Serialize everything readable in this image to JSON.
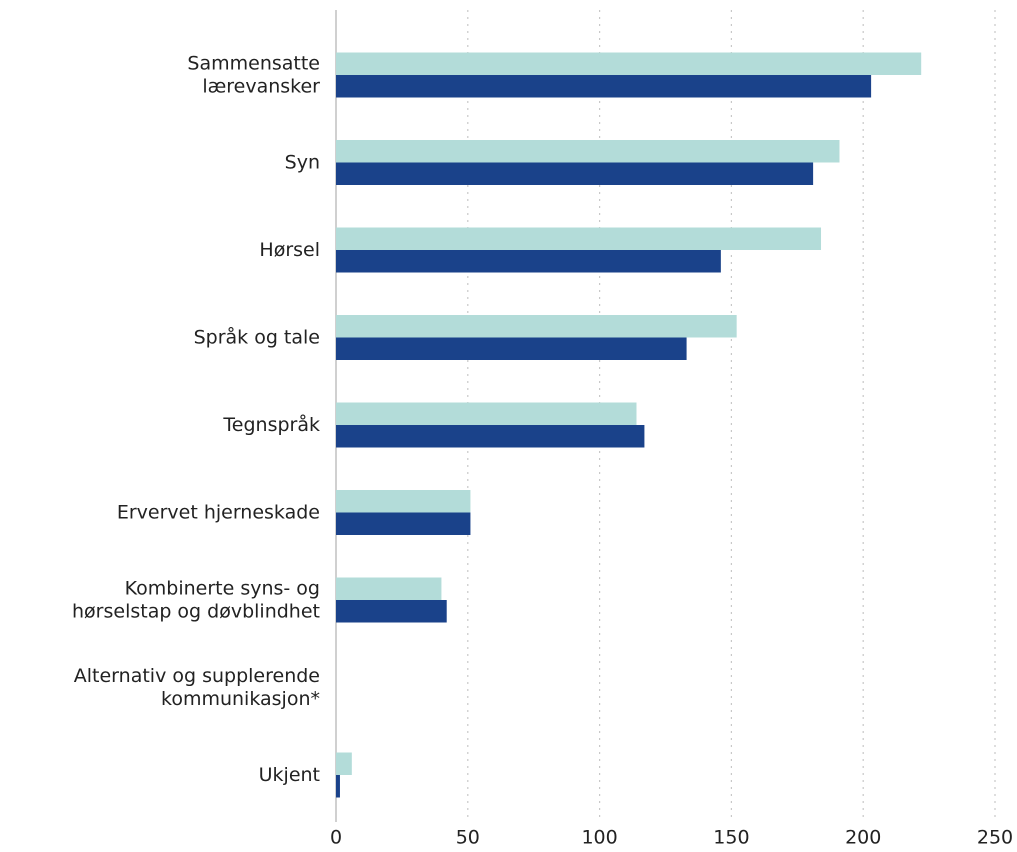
{
  "chart_data": {
    "type": "hbar",
    "categories": [
      "Sammensatte\nlærevansker",
      "Syn",
      "Hørsel",
      "Språk og tale",
      "Tegnspråk",
      "Ervervet hjerneskade",
      "Kombinerte syns- og\nhørselstap og døvblindhet",
      "Alternativ og supplerende\nkommunikasjon*",
      "Ukjent"
    ],
    "series": [
      {
        "color": "#b3dcd9",
        "values": [
          222,
          191,
          184,
          152,
          114,
          51,
          40,
          null,
          6
        ]
      },
      {
        "color": "#1a428a",
        "values": [
          203,
          181,
          146,
          133,
          117,
          51,
          42,
          null,
          1.5
        ]
      }
    ],
    "xlim": [
      0,
      250
    ],
    "xticks": [
      0,
      50,
      100,
      150,
      200,
      250
    ],
    "grid": true
  }
}
